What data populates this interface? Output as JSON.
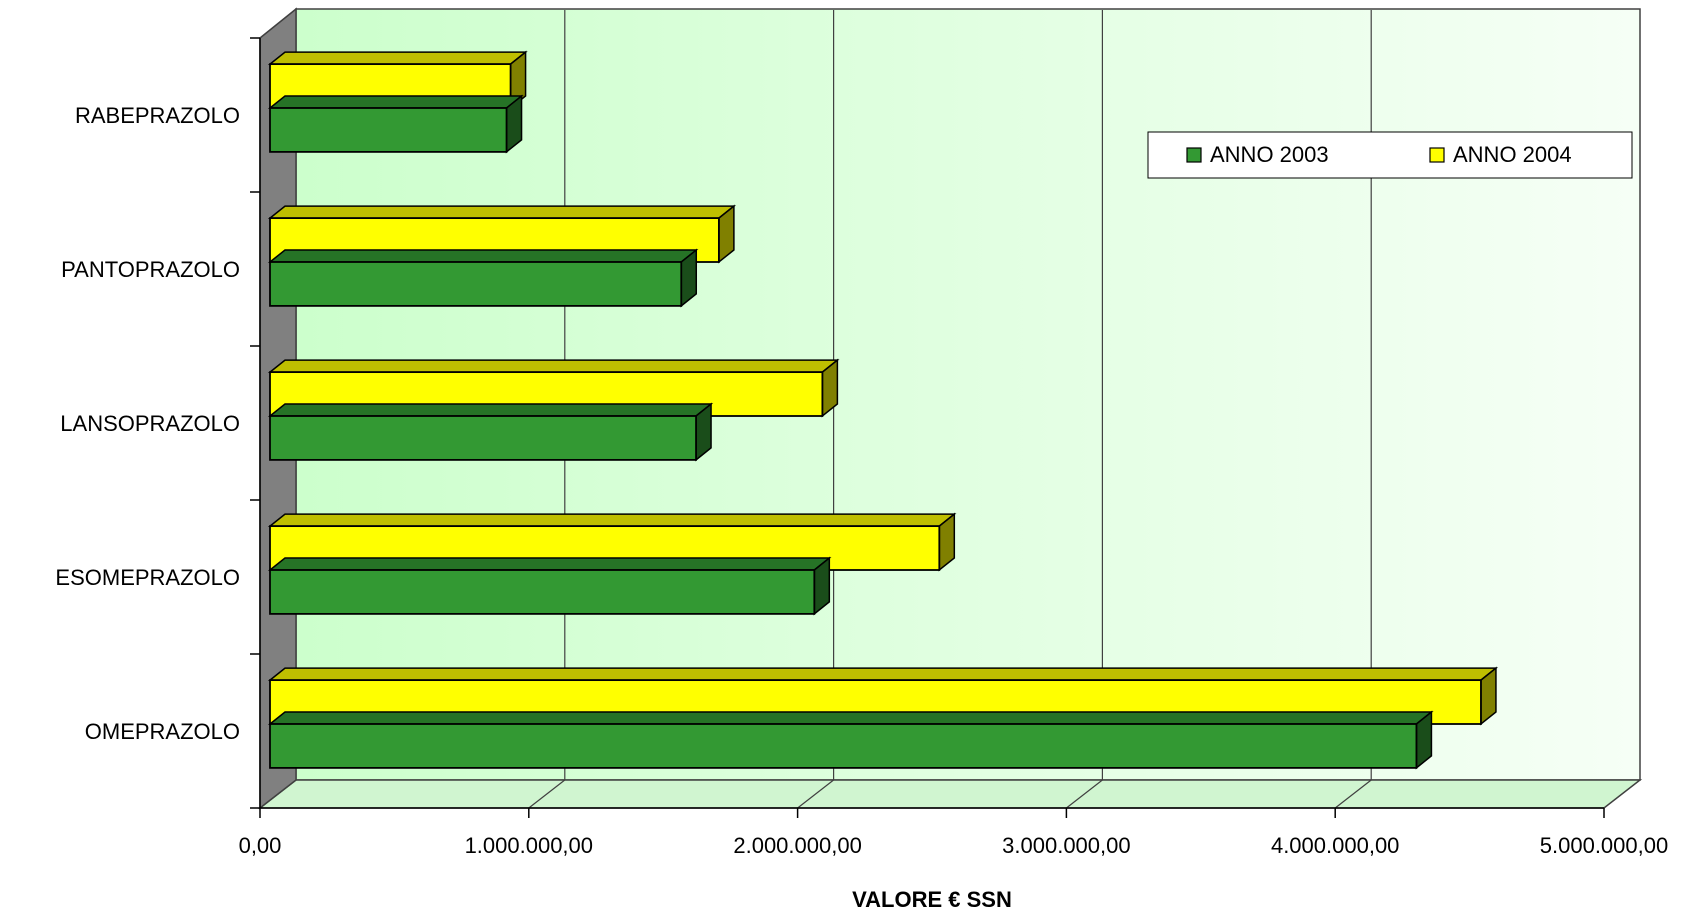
{
  "chart_data": {
    "type": "bar",
    "orientation": "horizontal",
    "style": "3d",
    "categories": [
      "RABEPRAZOLO",
      "PANTOPRAZOLO",
      "LANSOPRAZOLO",
      "ESOMEPRAZOLO",
      "OMEPRAZOLO"
    ],
    "series": [
      {
        "name": "ANNO 2003",
        "color": "#339933",
        "values": [
          880000,
          1530000,
          1585000,
          2025000,
          4265000
        ]
      },
      {
        "name": "ANNO 2004",
        "color": "#FFFF00",
        "values": [
          895000,
          1670000,
          2055000,
          2490000,
          4505000
        ]
      }
    ],
    "xlabel": "VALORE € SSN",
    "ylabel": "",
    "xlim": [
      0,
      5000000
    ],
    "x_ticks": [
      0,
      1000000,
      2000000,
      3000000,
      4000000,
      5000000
    ],
    "x_tick_labels": [
      "0,00",
      "1.000.000,00",
      "2.000.000,00",
      "3.000.000,00",
      "4.000.000,00",
      "5.000.000,00"
    ],
    "grid": true,
    "legend_position": "top-right",
    "colors": {
      "background_start": "#CCFFCC",
      "background_end": "#F6FFF6",
      "side_wall": "#808080",
      "gridline": "#404040"
    }
  }
}
